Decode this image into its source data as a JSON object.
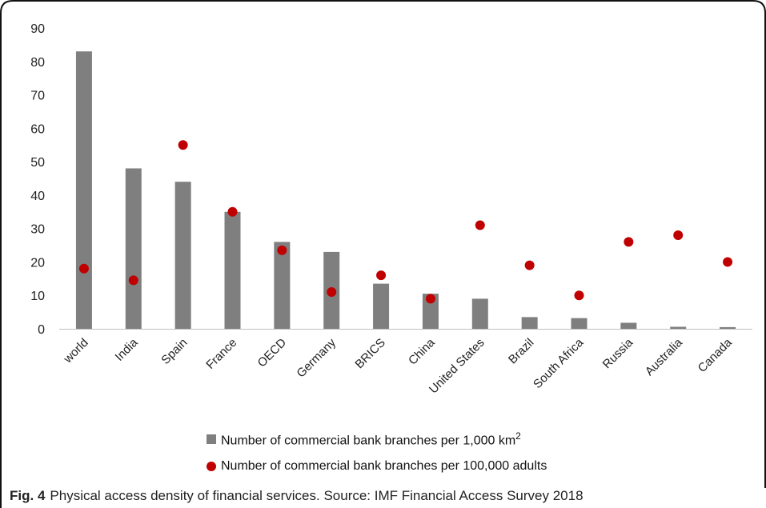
{
  "caption": {
    "label": "Fig. 4",
    "text": "Physical access density of financial services. Source: IMF Financial Access Survey 2018"
  },
  "colors": {
    "bar": "#7f7f7f",
    "dot": "#c00000"
  },
  "chart_data": {
    "type": "bar",
    "categories": [
      "world",
      "India",
      "Spain",
      "France",
      "OECD",
      "Germany",
      "BRICS",
      "China",
      "United States",
      "Brazil",
      "South Africa",
      "Russia",
      "Australia",
      "Canada"
    ],
    "ylim": [
      0,
      90
    ],
    "yticks": [
      0,
      10,
      20,
      30,
      40,
      50,
      60,
      70,
      80,
      90
    ],
    "series": [
      {
        "name": "Number of commercial bank branches per 1,000 km",
        "name_sup": "2",
        "kind": "bar",
        "values": [
          83,
          48,
          44,
          35,
          26,
          23,
          13.5,
          10.5,
          9,
          3.5,
          3.2,
          1.8,
          0.6,
          0.5
        ]
      },
      {
        "name": "Number of commercial bank branches per 100,000 adults",
        "kind": "scatter",
        "values": [
          18,
          14.5,
          55,
          35,
          23.5,
          11,
          16,
          9,
          31,
          19,
          10,
          26,
          28,
          20
        ]
      }
    ],
    "legend_position": "bottom",
    "grid": false
  }
}
